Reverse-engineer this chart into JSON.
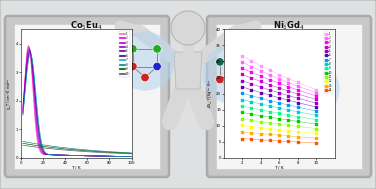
{
  "bg_color": "#dfe0e2",
  "board_left_color": "#c8c8c8",
  "board_right_color": "#c8c8c8",
  "board_inner": "#f5f5f5",
  "figure_color": "#d8d8d8",
  "figure_edge": "#b0b0b0",
  "title_left": "Co$_5$Eu$_4$",
  "title_right": "Ni$_5$Gd$_4$",
  "left_curves_colors": [
    "#ff69b4",
    "#ee00ee",
    "#bb00bb",
    "#9900cc",
    "#6600aa",
    "#440088",
    "#00bbbb",
    "#008888",
    "#005500",
    "#555555"
  ],
  "right_scatter_colors": [
    "#ff99ff",
    "#ff66ff",
    "#ff00ff",
    "#cc00cc",
    "#9900cc",
    "#6600aa",
    "#0099ff",
    "#00cccc",
    "#00ff88",
    "#00cc00",
    "#88ff00",
    "#ffff00",
    "#ffaa00",
    "#ff5500"
  ],
  "halo_color": "#b8d4ee",
  "bond_color": "#888888",
  "left_node_colors_1": [
    "#22aa22",
    "#22aa22",
    "#cc2222",
    "#2222cc",
    "#cc2222",
    "#cc2222"
  ],
  "left_node_colors_2": [
    "#22aa22",
    "#22aa22",
    "#cc2222",
    "#2222cc",
    "#cc2222",
    "#cc2222"
  ],
  "right_node_colors_1": [
    "#116655",
    "#116655",
    "#cc2222",
    "#2222aa",
    "#cc2222",
    "#cc2222"
  ],
  "right_node_colors_2": [
    "#116655",
    "#116655",
    "#cc2222",
    "#2222aa",
    "#cc2222",
    "#cc2222"
  ]
}
